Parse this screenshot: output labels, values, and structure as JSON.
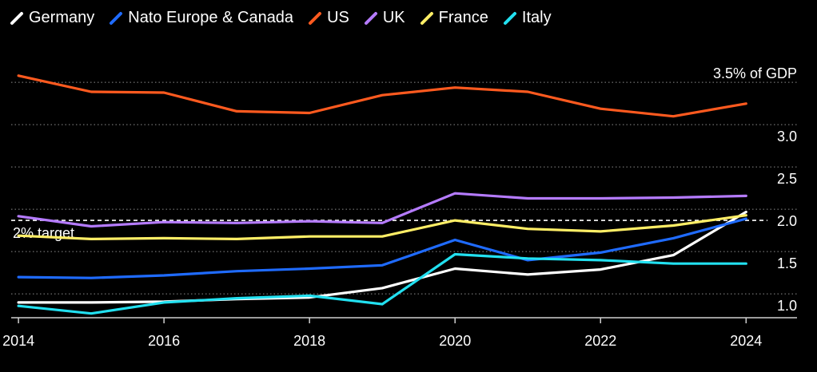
{
  "chart_data": {
    "type": "line",
    "x": [
      2014,
      2015,
      2016,
      2017,
      2018,
      2019,
      2020,
      2021,
      2022,
      2023,
      2024
    ],
    "xticks": [
      2014,
      2016,
      2018,
      2020,
      2022,
      2024
    ],
    "xtick_labels": [
      "2014",
      "2016",
      "2018",
      "2020",
      "2022",
      "2024"
    ],
    "yticks": [
      1.0,
      1.5,
      2.0,
      2.5,
      3.0
    ],
    "ytick_labels": [
      "1.0",
      "1.5",
      "2.0",
      "2.5",
      "3.0"
    ],
    "ylim": [
      0.85,
      3.85
    ],
    "xlim": [
      2013.9,
      2024.7
    ],
    "grid": "horizontal dotted",
    "legend_position": "top-left",
    "series": [
      {
        "name": "Germany",
        "color": "#ffffff",
        "values": [
          1.03,
          1.03,
          1.04,
          1.07,
          1.09,
          1.2,
          1.43,
          1.36,
          1.42,
          1.59,
          2.1
        ]
      },
      {
        "name": "Nato Europe & Canada",
        "color": "#1f6bff",
        "values": [
          1.33,
          1.32,
          1.35,
          1.4,
          1.43,
          1.47,
          1.77,
          1.53,
          1.62,
          1.79,
          2.02
        ]
      },
      {
        "name": "US",
        "color": "#ff5a1f",
        "values": [
          3.71,
          3.52,
          3.51,
          3.29,
          3.27,
          3.48,
          3.57,
          3.52,
          3.32,
          3.23,
          3.38
        ]
      },
      {
        "name": "UK",
        "color": "#b57bff",
        "values": [
          2.05,
          1.93,
          1.98,
          1.97,
          1.99,
          1.97,
          2.32,
          2.26,
          2.26,
          2.27,
          2.29
        ]
      },
      {
        "name": "France",
        "color": "#ffee66",
        "values": [
          1.82,
          1.78,
          1.79,
          1.78,
          1.81,
          1.81,
          2.0,
          1.9,
          1.87,
          1.94,
          2.06
        ]
      },
      {
        "name": "Italy",
        "color": "#22e0f0",
        "values": [
          0.99,
          0.9,
          1.03,
          1.08,
          1.11,
          1.01,
          1.6,
          1.55,
          1.53,
          1.49,
          1.49
        ]
      }
    ],
    "annotations": {
      "gdp_label": "3.5% of GDP",
      "target_label": "2% target",
      "target_value": 2.0
    }
  }
}
